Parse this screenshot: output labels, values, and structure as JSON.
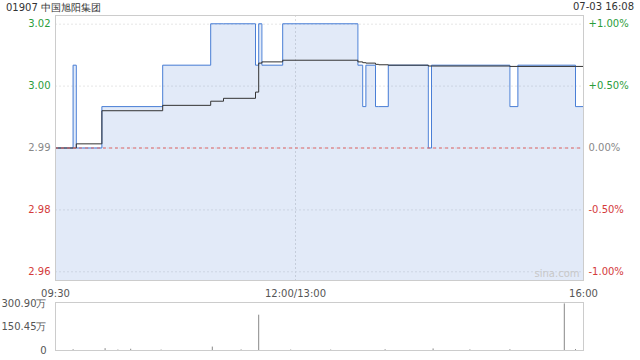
{
  "chart_data": [
    {
      "type": "line",
      "title": "01907 中国旭阳集团",
      "subtitle": "07-03 16:08",
      "annotations": [
        "sina.com"
      ],
      "x": [
        0,
        11,
        13,
        29,
        67,
        97,
        105,
        125,
        127,
        129,
        142,
        189,
        192,
        194,
        200,
        202,
        208,
        233,
        235,
        284,
        289,
        325,
        330
      ],
      "xlim": [
        0,
        330
      ],
      "xticks": [
        {
          "value": 0,
          "label": "09:30"
        },
        {
          "value": 150,
          "label": "12:00/13:00"
        },
        {
          "value": 330,
          "label": "16:00"
        }
      ],
      "ylim": [
        2.958,
        3.022
      ],
      "yticks": [
        {
          "value": 3.0199,
          "label": "3.02"
        },
        {
          "value": 3.00495,
          "label": "3.00"
        },
        {
          "value": 2.99,
          "label": "2.99"
        },
        {
          "value": 2.97505,
          "label": "2.98"
        },
        {
          "value": 2.9601,
          "label": "2.96"
        }
      ],
      "y2lim": [
        -1.07,
        1.07
      ],
      "y2ticks": [
        {
          "value": 1,
          "label": "+1.00%"
        },
        {
          "value": 0.5,
          "label": "+0.50%"
        },
        {
          "value": 0,
          "label": "0.00%"
        },
        {
          "value": -0.5,
          "label": "-0.50%"
        },
        {
          "value": -1,
          "label": "-1.00%"
        }
      ],
      "grid": true,
      "series": [
        {
          "type": "area",
          "color": "#4a7fd6",
          "values": [
            2.99,
            3.01,
            2.99,
            3.0,
            3.01,
            3.02,
            3.02,
            3.01,
            3.02,
            3.01,
            3.02,
            3.01,
            3.0,
            3.01,
            3.0,
            3.0,
            3.01,
            2.99,
            3.01,
            3.0,
            3.01,
            3.0,
            3.0
          ]
        },
        {
          "type": "line",
          "color": "#333333",
          "values": [
            2.99,
            2.99,
            2.991,
            2.999,
            3.0003,
            3.0013,
            3.002,
            3.0035,
            3.0105,
            3.0108,
            3.0112,
            3.0108,
            3.0106,
            3.0105,
            3.0102,
            3.0101,
            3.01,
            3.0098,
            3.0098,
            3.0097,
            3.0097,
            3.0097,
            3.0096
          ]
        }
      ]
    },
    {
      "type": "bar",
      "x": [
        11,
        31,
        39,
        47,
        66,
        98,
        116,
        127,
        147,
        172,
        206,
        236,
        259,
        284,
        318,
        325
      ],
      "values": [
        5,
        12,
        3,
        8,
        3,
        22,
        4,
        228,
        3,
        3,
        5,
        10,
        4,
        5,
        300.9,
        6
      ],
      "color": "#888888",
      "xlim": [
        0,
        330
      ],
      "ylim": [
        0,
        310
      ],
      "yticks": [
        0,
        {
          "value": 150.45,
          "label": "150.45万"
        },
        {
          "value": 300.9,
          "label": "300.90万"
        }
      ],
      "tick_labels": "y"
    }
  ]
}
